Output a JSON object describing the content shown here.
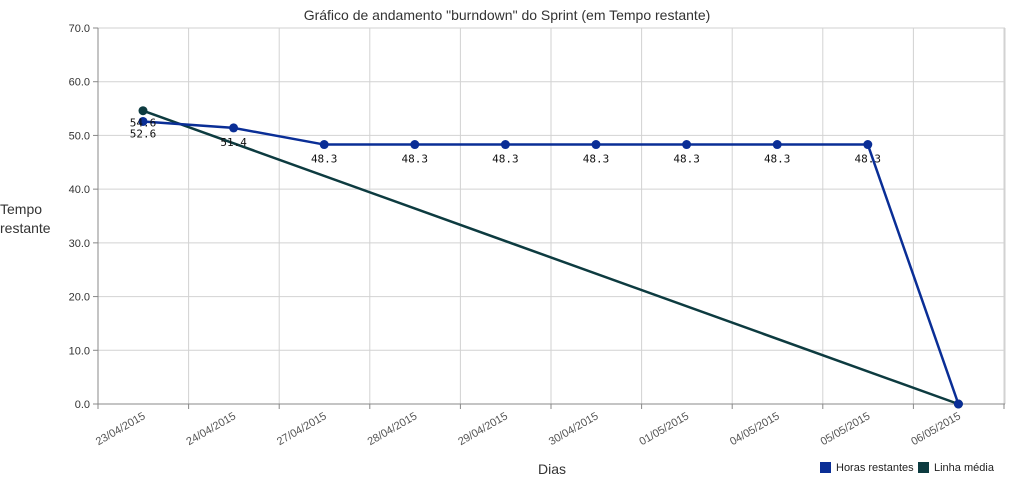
{
  "chart_data": {
    "type": "line",
    "title": "Gráfico de andamento \"burndown\" do Sprint (em Tempo restante)",
    "xlabel": "Dias",
    "ylabel": [
      "Tempo",
      "restante"
    ],
    "ylim": [
      0,
      70
    ],
    "yticks": [
      "0.0",
      "10.0",
      "20.0",
      "30.0",
      "40.0",
      "50.0",
      "60.0",
      "70.0"
    ],
    "categories": [
      "23/04/2015",
      "24/04/2015",
      "27/04/2015",
      "28/04/2015",
      "29/04/2015",
      "30/04/2015",
      "01/05/2015",
      "04/05/2015",
      "05/05/2015",
      "06/05/2015"
    ],
    "grid": true,
    "legend_position": "bottom-right",
    "series": [
      {
        "name": "Horas restantes",
        "color": "#0a2e96",
        "values": [
          52.6,
          51.4,
          48.3,
          48.3,
          48.3,
          48.3,
          48.3,
          48.3,
          48.3,
          0
        ],
        "labels": [
          "52.6",
          "51.4",
          "48.3",
          "48.3",
          "48.3",
          "48.3",
          "48.3",
          "48.3",
          "48.3",
          ""
        ]
      },
      {
        "name": "Linha média",
        "color": "#0d3b40",
        "values": [
          54.6,
          null,
          null,
          null,
          null,
          null,
          null,
          null,
          null,
          0
        ],
        "labels": [
          "54.6",
          "",
          "",
          "",
          "",
          "",
          "",
          "",
          "",
          ""
        ]
      }
    ]
  }
}
